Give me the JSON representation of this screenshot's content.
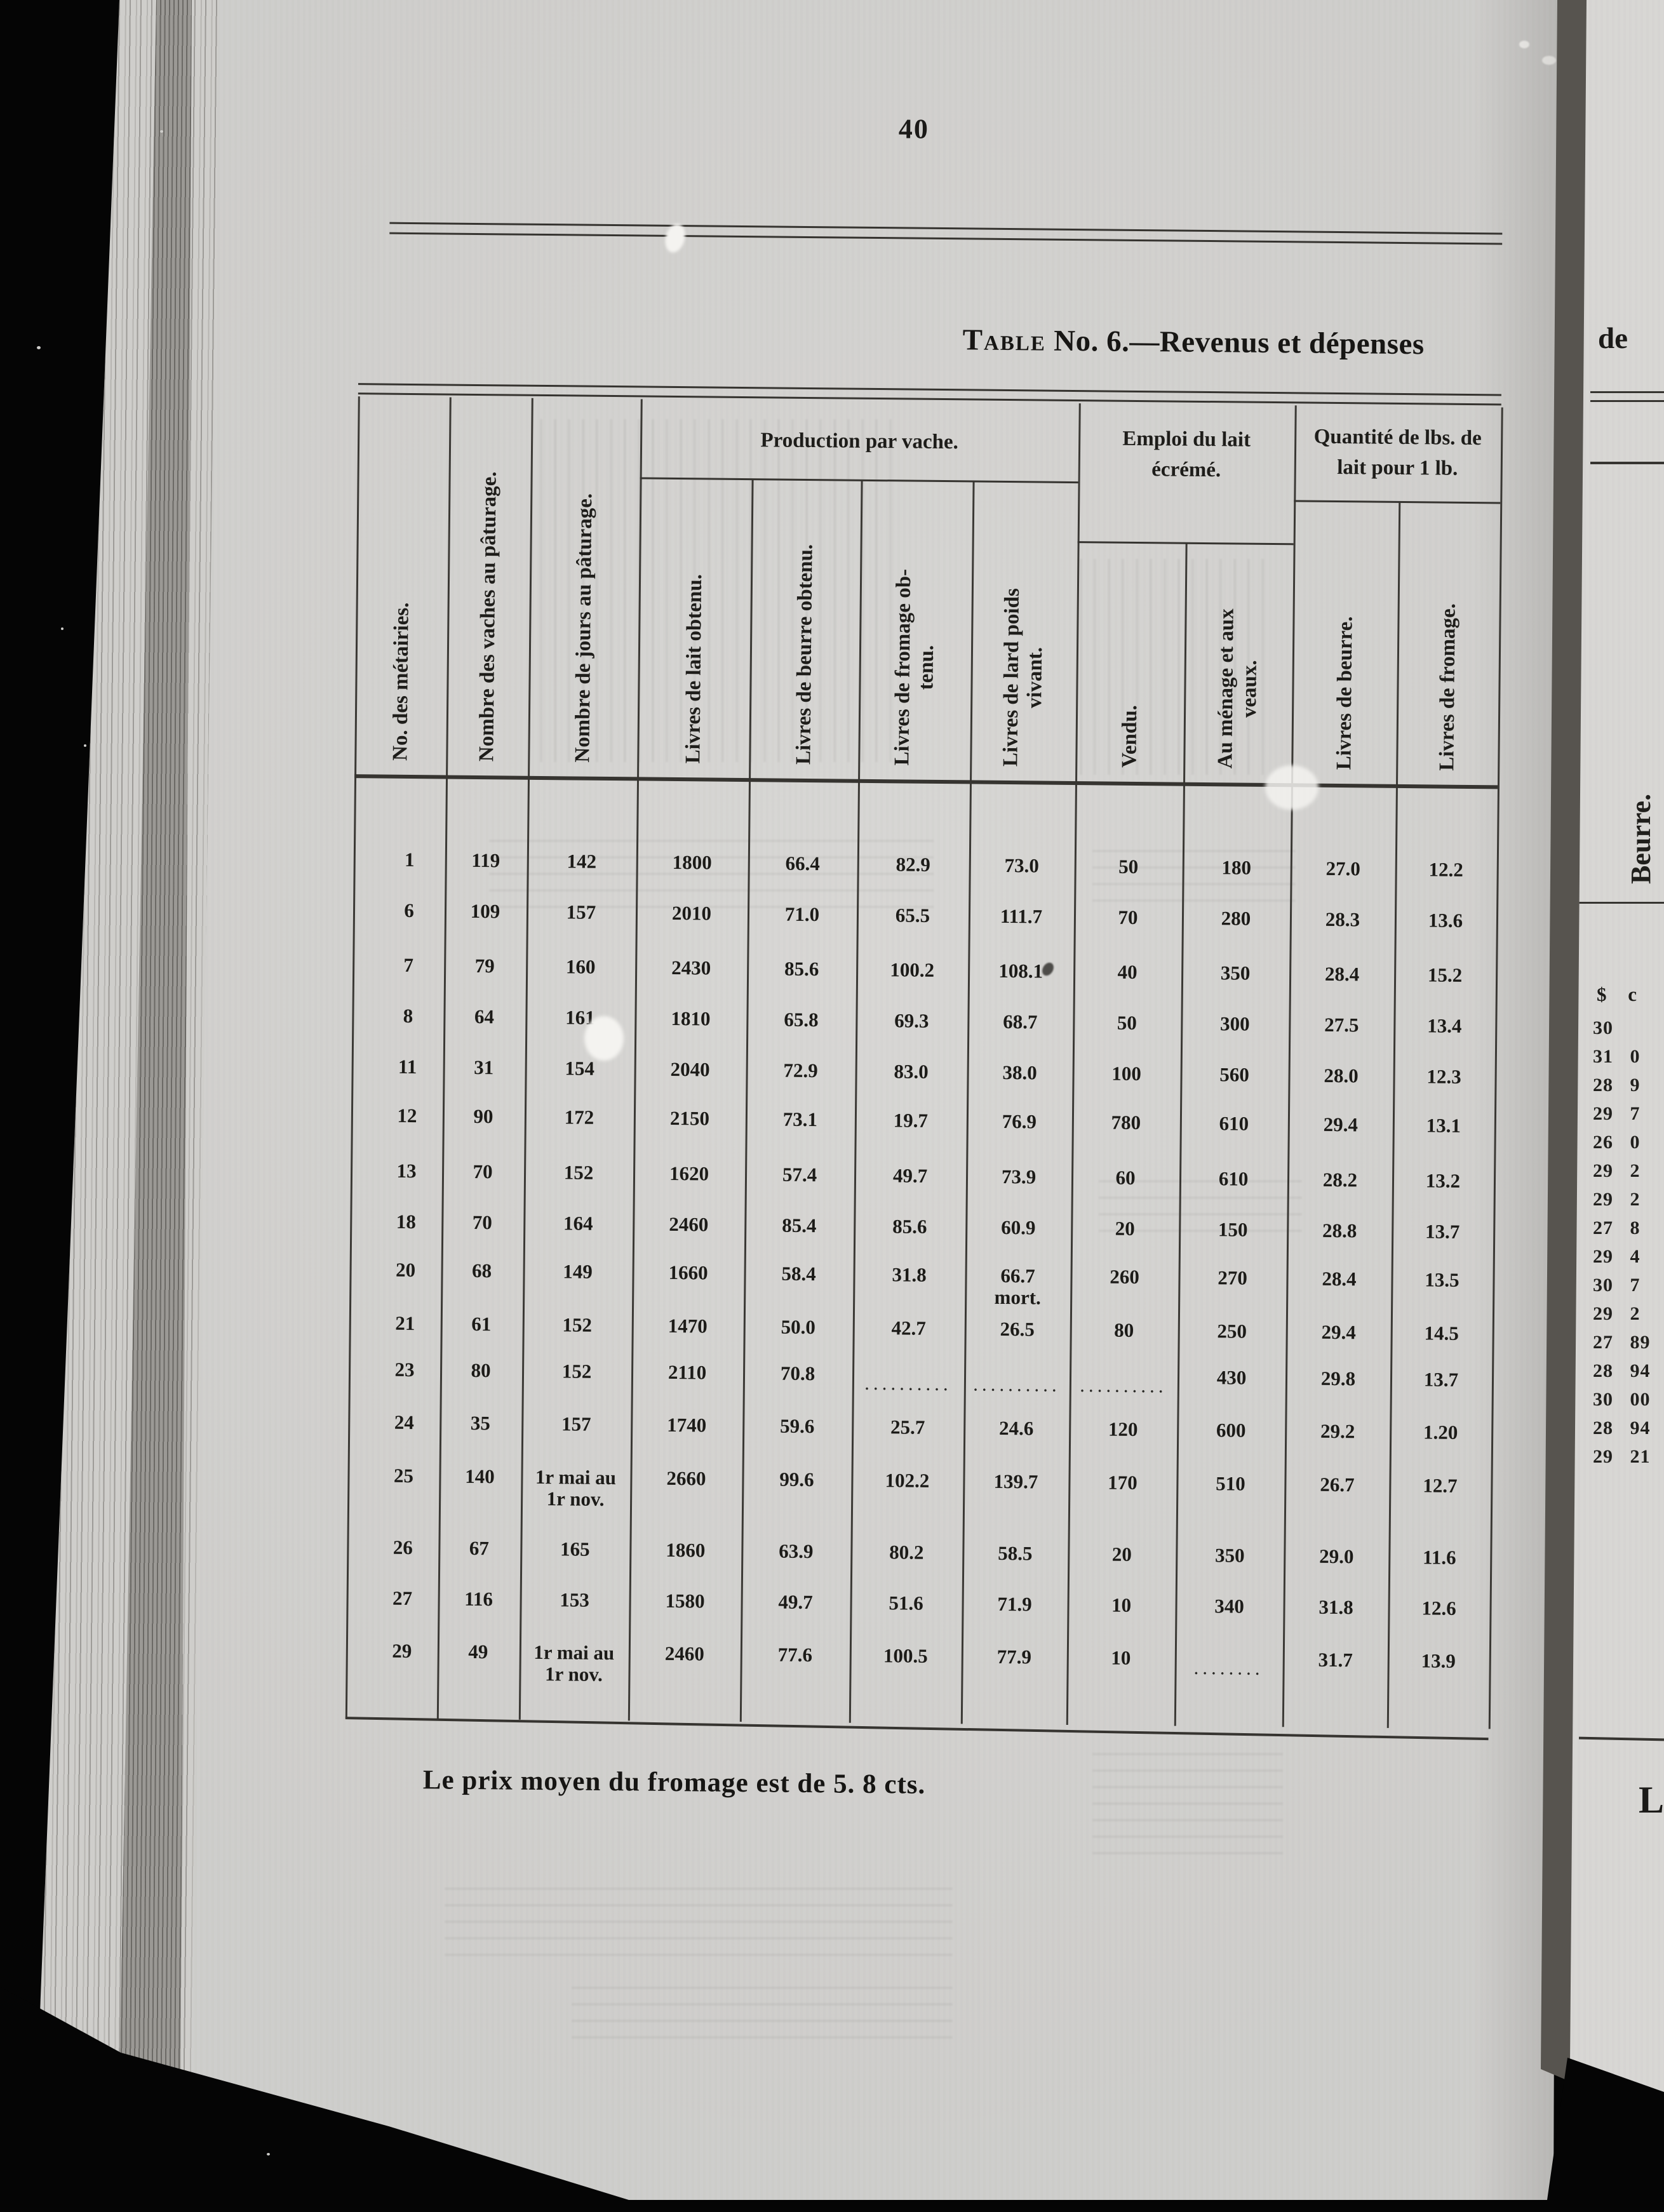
{
  "page": {
    "number": "40",
    "title_lead": "Table",
    "title_rest": " No. 6.—Revenus et dépenses",
    "footnote": "Le prix moyen du fromage est de 5. 8 cts."
  },
  "table": {
    "group_headers": [
      {
        "label": "Production par vache."
      },
      {
        "label": "Emploi du lait\nécrémé."
      },
      {
        "label": "Quantité de lbs. de\nlait pour 1 lb."
      }
    ],
    "columns": [
      {
        "label": "No. des métairies."
      },
      {
        "label": "Nombre des vaches au pâturage."
      },
      {
        "label": "Nombre de jours au pâturage."
      },
      {
        "label": "Livres de lait obtenu."
      },
      {
        "label": "Livres de beurre obtenu."
      },
      {
        "label": "Livres de fromage ob-\ntenu."
      },
      {
        "label": "Livres de lard poids\nvivant."
      },
      {
        "label": "Vendu."
      },
      {
        "label": "Au ménage et aux\nveaux."
      },
      {
        "label": "Livres de beurre."
      },
      {
        "label": "Livres de fromage."
      }
    ],
    "rows": [
      [
        "1",
        "119",
        "142",
        "1800",
        "66.4",
        "82.9",
        "73.0",
        "50",
        "180",
        "27.0",
        "12.2"
      ],
      [
        "6",
        "109",
        "157",
        "2010",
        "71.0",
        "65.5",
        "111.7",
        "70",
        "280",
        "28.3",
        "13.6"
      ],
      [
        "7",
        "79",
        "160",
        "2430",
        "85.6",
        "100.2",
        "108.1",
        "40",
        "350",
        "28.4",
        "15.2"
      ],
      [
        "8",
        "64",
        "161",
        "1810",
        "65.8",
        "69.3",
        "68.7",
        "50",
        "300",
        "27.5",
        "13.4"
      ],
      [
        "11",
        "31",
        "154",
        "2040",
        "72.9",
        "83.0",
        "38.0",
        "100",
        "560",
        "28.0",
        "12.3"
      ],
      [
        "12",
        "90",
        "172",
        "2150",
        "73.1",
        "19.7",
        "76.9",
        "780",
        "610",
        "29.4",
        "13.1"
      ],
      [
        "13",
        "70",
        "152",
        "1620",
        "57.4",
        "49.7",
        "73.9",
        "60",
        "610",
        "28.2",
        "13.2"
      ],
      [
        "18",
        "70",
        "164",
        "2460",
        "85.4",
        "85.6",
        "60.9",
        "20",
        "150",
        "28.8",
        "13.7"
      ],
      [
        "20",
        "68",
        "149",
        "1660",
        "58.4",
        "31.8",
        "66.7\nmort.",
        "260",
        "270",
        "28.4",
        "13.5"
      ],
      [
        "21",
        "61",
        "152",
        "1470",
        "50.0",
        "42.7",
        "26.5",
        "80",
        "250",
        "29.4",
        "14.5"
      ],
      [
        "23",
        "80",
        "152",
        "2110",
        "70.8",
        "..........",
        "..........",
        "..........",
        "430",
        "29.8",
        "13.7"
      ],
      [
        "24",
        "35",
        "157",
        "1740",
        "59.6",
        "25.7",
        "24.6",
        "120",
        "600",
        "29.2",
        "1.20"
      ],
      [
        "25",
        "140",
        "1r mai au\n1r nov.",
        "2660",
        "99.6",
        "102.2",
        "139.7",
        "170",
        "510",
        "26.7",
        "12.7"
      ],
      [
        "26",
        "67",
        "165",
        "1860",
        "63.9",
        "80.2",
        "58.5",
        "20",
        "350",
        "29.0",
        "11.6"
      ],
      [
        "27",
        "116",
        "153",
        "1580",
        "49.7",
        "51.6",
        "71.9",
        "10",
        "340",
        "31.8",
        "12.6"
      ],
      [
        "29",
        "49",
        "1r mai au\n1r nov.",
        "2460",
        "77.6",
        "100.5",
        "77.9",
        "10",
        "........",
        "31.7",
        "13.9"
      ]
    ]
  },
  "right_page": {
    "title_fragment": "de",
    "column_header": "Beurre.",
    "unit_header": "$ c",
    "values": [
      "30",
      "31 0",
      "28 9",
      "29 7",
      "26 0",
      "29 2",
      "29 2",
      "27 8",
      "29 4",
      "30 7",
      "29 2",
      "27 89",
      "28 94",
      "30 00",
      "28 94",
      "29 21"
    ],
    "paragraph_fragment": "L"
  }
}
